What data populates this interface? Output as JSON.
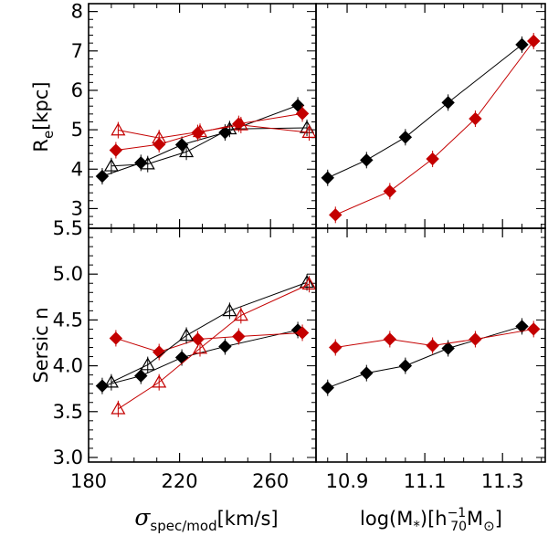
{
  "chart_data": [
    {
      "id": "tl",
      "type": "scatter",
      "panel": "top-left",
      "xlim": [
        180,
        280
      ],
      "ylim": [
        2.5,
        8.2
      ],
      "xticks": [
        180,
        220,
        260
      ],
      "yticks": [
        3,
        4,
        5,
        6,
        7,
        8
      ],
      "ytick_labels": [
        "3",
        "4",
        "5",
        "6",
        "7",
        "8"
      ],
      "ylabel_main": "R",
      "ylabel_sub": "e",
      "ylabel_unit": "[kpc]",
      "series": [
        {
          "name": "black filled diamonds",
          "color": "#000000",
          "marker": "diamond",
          "x": [
            186,
            203,
            221,
            240,
            272
          ],
          "y": [
            3.82,
            4.16,
            4.62,
            4.93,
            5.62
          ]
        },
        {
          "name": "red filled diamonds",
          "color": "#c40000",
          "marker": "diamond",
          "x": [
            192,
            211,
            228,
            246,
            274
          ],
          "y": [
            4.48,
            4.63,
            4.92,
            5.15,
            5.41
          ]
        },
        {
          "name": "black open triangles",
          "color": "#000000",
          "marker": "triangle",
          "x": [
            190,
            206,
            223,
            242,
            276
          ],
          "y": [
            4.08,
            4.13,
            4.44,
            5.02,
            5.05
          ]
        },
        {
          "name": "red open triangles",
          "color": "#c40000",
          "marker": "triangle",
          "x": [
            193,
            211,
            229,
            247,
            277
          ],
          "y": [
            4.99,
            4.79,
            4.95,
            5.12,
            4.93
          ]
        }
      ]
    },
    {
      "id": "tr",
      "type": "scatter",
      "panel": "top-right",
      "xlim": [
        10.82,
        11.41
      ],
      "ylim": [
        2.5,
        8.2
      ],
      "xticks": [
        10.9,
        11.1,
        11.3
      ],
      "series": [
        {
          "name": "black filled diamonds",
          "color": "#000000",
          "marker": "diamond",
          "x": [
            10.85,
            10.95,
            11.05,
            11.16,
            11.35
          ],
          "y": [
            3.78,
            4.23,
            4.81,
            5.69,
            7.16
          ]
        },
        {
          "name": "red filled diamonds",
          "color": "#c40000",
          "marker": "diamond",
          "x": [
            10.87,
            11.01,
            11.12,
            11.23,
            11.38
          ],
          "y": [
            2.84,
            3.44,
            4.26,
            5.28,
            7.25
          ]
        }
      ]
    },
    {
      "id": "bl",
      "type": "scatter",
      "panel": "bottom-left",
      "xlim": [
        180,
        280
      ],
      "ylim": [
        2.95,
        5.5
      ],
      "xticks": [
        180,
        220,
        260
      ],
      "xtick_labels": [
        "180",
        "220",
        "260"
      ],
      "yticks": [
        3.0,
        3.5,
        4.0,
        4.5,
        5.0,
        5.5
      ],
      "ytick_labels": [
        "3.0",
        "3.5",
        "4.0",
        "4.5",
        "5.0",
        "5.5"
      ],
      "ylabel": "Sersic n",
      "xlabel_main": "σ",
      "xlabel_sub": "spec/mod",
      "xlabel_unit": "[km/s]",
      "series": [
        {
          "name": "black filled diamonds",
          "color": "#000000",
          "marker": "diamond",
          "x": [
            186,
            203,
            221,
            240,
            272
          ],
          "y": [
            3.78,
            3.89,
            4.09,
            4.21,
            4.39
          ]
        },
        {
          "name": "red filled diamonds",
          "color": "#c40000",
          "marker": "diamond",
          "x": [
            192,
            211,
            228,
            246,
            274
          ],
          "y": [
            4.3,
            4.15,
            4.29,
            4.32,
            4.36
          ]
        },
        {
          "name": "black open triangles",
          "color": "#000000",
          "marker": "triangle",
          "x": [
            190,
            206,
            223,
            242,
            276
          ],
          "y": [
            3.82,
            4.01,
            4.33,
            4.6,
            4.91
          ]
        },
        {
          "name": "red open triangles",
          "color": "#c40000",
          "marker": "triangle",
          "x": [
            193,
            211,
            229,
            247,
            277
          ],
          "y": [
            3.53,
            3.82,
            4.19,
            4.55,
            4.89
          ]
        }
      ]
    },
    {
      "id": "br",
      "type": "scatter",
      "panel": "bottom-right",
      "xlim": [
        10.82,
        11.41
      ],
      "ylim": [
        2.95,
        5.5
      ],
      "xticks": [
        10.9,
        11.1,
        11.3
      ],
      "xtick_labels": [
        "10.9",
        "11.1",
        "11.3"
      ],
      "xlabel_main": "log(M",
      "xlabel_star": "*",
      "xlabel_mid": ")[h",
      "xlabel_sup": "−1",
      "xlabel_sub": "70",
      "xlabel_m": "M",
      "xlabel_sun": "⊙",
      "xlabel_close": "]",
      "series": [
        {
          "name": "black filled diamonds",
          "color": "#000000",
          "marker": "diamond",
          "x": [
            10.85,
            10.95,
            11.05,
            11.16,
            11.35
          ],
          "y": [
            3.76,
            3.92,
            4.0,
            4.19,
            4.43
          ]
        },
        {
          "name": "red filled diamonds",
          "color": "#c40000",
          "marker": "diamond",
          "x": [
            10.87,
            11.01,
            11.12,
            11.23,
            11.38
          ],
          "y": [
            4.2,
            4.29,
            4.22,
            4.29,
            4.4
          ]
        }
      ]
    }
  ]
}
